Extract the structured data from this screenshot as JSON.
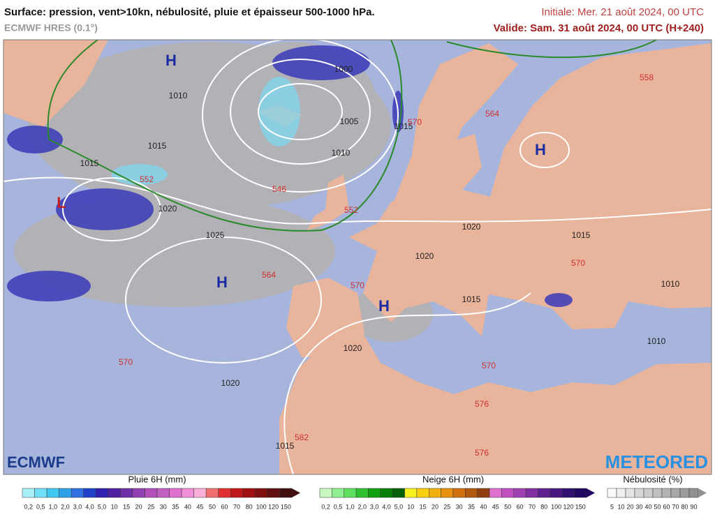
{
  "header": {
    "title": "Surface: pression, vent>10kn, nébulosité, pluie et épaisseur 500-1000 hPa.",
    "model": "ECMWF HRES (0.1°)",
    "initial": "Initiale: Mer. 21 août 2024, 00 UTC",
    "valid": "Valide: Sam. 31 août 2024, 00 UTC (H+240)"
  },
  "map": {
    "highs": [
      "H",
      "H",
      "H",
      "H"
    ],
    "lows": [
      "L"
    ],
    "isobar_labels": [
      "1000",
      "1005",
      "1010",
      "1010",
      "1015",
      "1015",
      "1015",
      "1020",
      "1025",
      "1020",
      "1020",
      "1015",
      "1020",
      "1020",
      "1015",
      "1010",
      "1010",
      "1015"
    ],
    "thickness_labels": [
      "552",
      "546",
      "552",
      "558",
      "564",
      "564",
      "570",
      "570",
      "570",
      "576",
      "576",
      "570",
      "582",
      "570"
    ]
  },
  "logos": {
    "left": "ECMWF",
    "right": "METEORED"
  },
  "legends": [
    {
      "title": "Pluie 6H (mm)",
      "labels": [
        "0,2",
        "0,5",
        "1,0",
        "2,0",
        "3,0",
        "4,0",
        "5,0",
        "10",
        "15",
        "20",
        "25",
        "30",
        "35",
        "40",
        "45",
        "50",
        "60",
        "70",
        "80",
        "100",
        "120",
        "150"
      ],
      "colors": [
        "#a8f0f8",
        "#70e0f8",
        "#40c8f0",
        "#30a0e8",
        "#3070e0",
        "#2040c8",
        "#3020b0",
        "#5020a0",
        "#7030a8",
        "#9040b0",
        "#b050b8",
        "#c060c0",
        "#e070d0",
        "#f090d8",
        "#f8b0d8",
        "#f07070",
        "#e03030",
        "#c01818",
        "#a01010",
        "#801010",
        "#601010",
        "#401010"
      ]
    },
    {
      "title": "Neige 6H (mm)",
      "labels": [
        "0,2",
        "0,5",
        "1,0",
        "2,0",
        "3,0",
        "4,0",
        "5,0",
        "10",
        "15",
        "20",
        "25",
        "30",
        "35",
        "40",
        "45",
        "50",
        "60",
        "70",
        "80",
        "100",
        "120",
        "150"
      ],
      "colors": [
        "#c8f8c0",
        "#90f090",
        "#60e060",
        "#30c030",
        "#10a010",
        "#088008",
        "#066006",
        "#f8f020",
        "#f8d010",
        "#f0b010",
        "#e89010",
        "#d07010",
        "#b05810",
        "#904010",
        "#e070d0",
        "#c050c0",
        "#a040b0",
        "#8030a0",
        "#602090",
        "#481880",
        "#301070",
        "#200860"
      ]
    },
    {
      "title": "Nébulosité (%)",
      "labels": [
        "5",
        "10",
        "20",
        "30",
        "40",
        "50",
        "60",
        "70",
        "80",
        "90"
      ],
      "colors": [
        "#fafafa",
        "#f0f0f0",
        "#e4e4e4",
        "#d8d8d8",
        "#cccccc",
        "#c0c0c0",
        "#b4b4b4",
        "#a8a8a8",
        "#9c9c9c",
        "#909090"
      ]
    }
  ]
}
